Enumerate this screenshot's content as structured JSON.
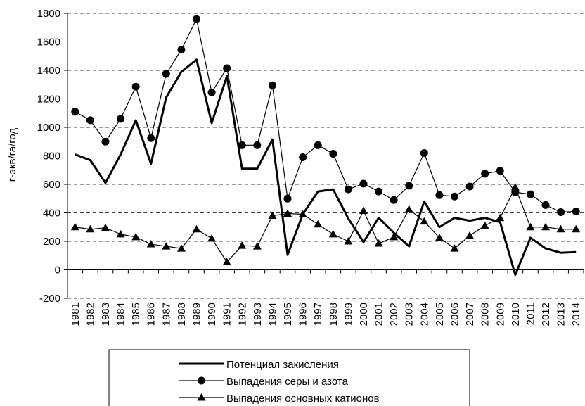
{
  "chart_data": {
    "type": "line",
    "y_label": "г-экв/га/год",
    "categories": [
      "1981",
      "1982",
      "1983",
      "1984",
      "1985",
      "1986",
      "1987",
      "1988",
      "1989",
      "1990",
      "1991",
      "1992",
      "1993",
      "1994",
      "1995",
      "1996",
      "1997",
      "1998",
      "1999",
      "2000",
      "2001",
      "2002",
      "2003",
      "2004",
      "2005",
      "2006",
      "2007",
      "2008",
      "2009",
      "2010",
      "2011",
      "2012",
      "2013",
      "2014"
    ],
    "series": [
      {
        "name": "Потенциал закисления",
        "color": "#000000",
        "marker": "none",
        "line_width": 3,
        "values": [
          810,
          770,
          610,
          810,
          1050,
          745,
          1210,
          1390,
          1475,
          1030,
          1360,
          710,
          710,
          915,
          105,
          390,
          550,
          565,
          360,
          195,
          365,
          260,
          165,
          480,
          300,
          365,
          345,
          365,
          335,
          -35,
          225,
          150,
          120,
          125
        ]
      },
      {
        "name": "Выпадения серы и азота",
        "color": "#000000",
        "marker": "circle",
        "line_width": 1.2,
        "values": [
          1110,
          1050,
          900,
          1060,
          1285,
          925,
          1375,
          1545,
          1760,
          1245,
          1415,
          875,
          875,
          1295,
          500,
          790,
          875,
          815,
          565,
          605,
          550,
          490,
          590,
          820,
          525,
          515,
          585,
          675,
          695,
          545,
          530,
          455,
          405,
          410
        ]
      },
      {
        "name": "Выпадения основных катионов",
        "color": "#000000",
        "marker": "triangle",
        "line_width": 1.2,
        "values": [
          300,
          285,
          295,
          250,
          230,
          180,
          165,
          150,
          285,
          220,
          55,
          170,
          165,
          380,
          395,
          390,
          320,
          250,
          200,
          415,
          185,
          230,
          425,
          340,
          225,
          150,
          240,
          310,
          365,
          580,
          300,
          300,
          285,
          285
        ]
      }
    ],
    "ylim": [
      -200,
      1800
    ],
    "yticks": [
      -200,
      0,
      200,
      400,
      600,
      800,
      1000,
      1200,
      1400,
      1600,
      1800
    ],
    "grid": true,
    "legend": "bottom"
  }
}
